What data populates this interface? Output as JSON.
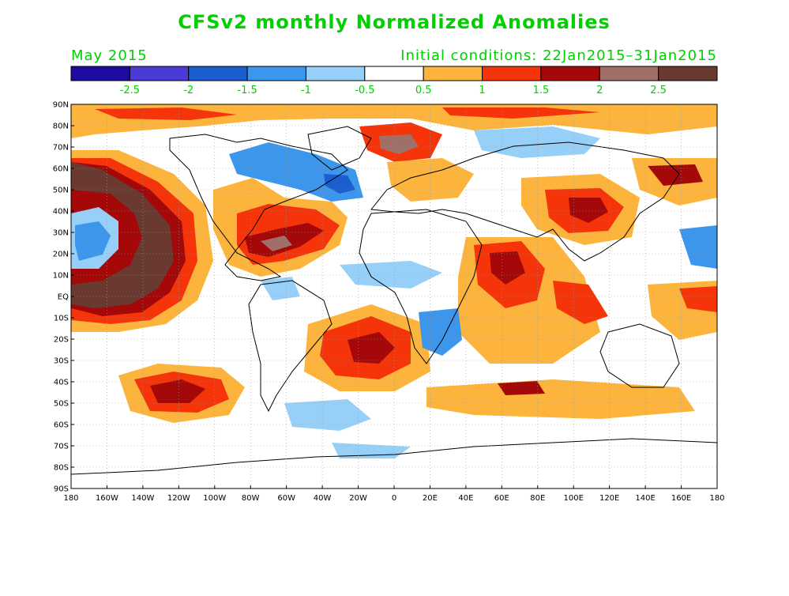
{
  "header": {
    "title": "CFSv2 monthly Normalized Anomalies",
    "month": "May 2015",
    "initial_conditions": "Initial conditions: 22Jan2015–31Jan2015"
  },
  "colorbar": {
    "colors": [
      "#1e0ba0",
      "#4a3bd6",
      "#1c5ed0",
      "#3c96ec",
      "#96d0f8",
      "#ffffff",
      "#fcb43c",
      "#f6340a",
      "#a40808",
      "#a07068",
      "#6a3a30"
    ],
    "ticks": [
      "-2.5",
      "-2",
      "-1.5",
      "-1",
      "-0.5",
      "0.5",
      "1",
      "1.5",
      "2",
      "2.5"
    ]
  },
  "map": {
    "lat_labels": [
      "90N",
      "80N",
      "70N",
      "60N",
      "50N",
      "40N",
      "30N",
      "20N",
      "10N",
      "EQ",
      "10S",
      "20S",
      "30S",
      "40S",
      "50S",
      "60S",
      "70S",
      "80S",
      "90S"
    ],
    "lon_labels": [
      "180",
      "160W",
      "140W",
      "120W",
      "100W",
      "80W",
      "60W",
      "40W",
      "20W",
      "0",
      "20E",
      "40E",
      "60E",
      "80E",
      "100E",
      "120E",
      "140E",
      "160E",
      "180"
    ],
    "grid_lines": true
  }
}
